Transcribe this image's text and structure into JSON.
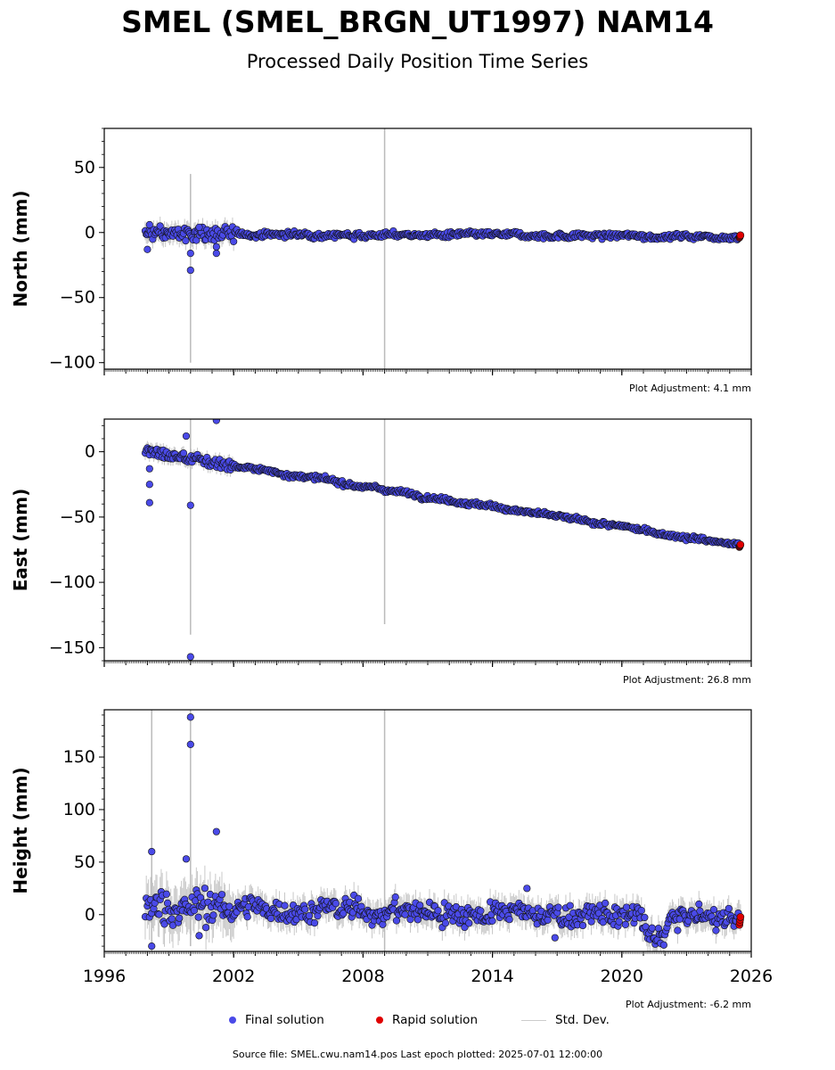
{
  "title": "SMEL (SMEL_BRGN_UT1997) NAM14",
  "subtitle": "Processed Daily Position Time Series",
  "source_text": "Source file: SMEL.cwu.nam14.pos  Last epoch plotted: 2025-07-01 12:00:00",
  "legend": {
    "final": "Final solution",
    "rapid": "Rapid solution",
    "stddev": "Std. Dev."
  },
  "colors": {
    "final": "#4a4ae8",
    "rapid": "#e00000",
    "stddev": "#bbbbbb",
    "marker_edge": "#111111"
  },
  "chart_data": {
    "type": "scatter",
    "xlim": [
      1996,
      2026
    ],
    "x_ticks": [
      1996,
      2002,
      2008,
      2014,
      2020,
      2026
    ],
    "x_tick_labels": [
      "1996",
      "2002",
      "2008",
      "2014",
      "2020",
      "2026"
    ],
    "data_start_year": 1997.9,
    "last_epoch": 2025.5,
    "rapid_start_year": 2025.45,
    "panels": [
      {
        "key": "north",
        "ylabel": "North (mm)",
        "ylim": [
          -105,
          80
        ],
        "yticks": [
          50,
          0,
          -50,
          -100
        ],
        "adjustment": "Plot Adjustment: 4.1 mm",
        "trend": {
          "start": -1,
          "end": -3
        },
        "noise": 1.5,
        "early_noise": 4,
        "outliers": [
          [
            1998.0,
            -13
          ],
          [
            1998.1,
            6
          ],
          [
            2000.0,
            -16
          ],
          [
            2000.0,
            -29
          ],
          [
            2000.4,
            4
          ],
          [
            2001.2,
            -16
          ],
          [
            2001.2,
            -11
          ]
        ],
        "spikes": [
          [
            2000.0,
            -100,
            45
          ],
          [
            2009.0,
            -105,
            80
          ]
        ],
        "rapid_end": -3
      },
      {
        "key": "east",
        "ylabel": "East (mm)",
        "ylim": [
          -160,
          25
        ],
        "yticks": [
          0,
          -50,
          -100,
          -150
        ],
        "adjustment": "Plot Adjustment: 26.8 mm",
        "trend": {
          "start": 0,
          "end": -72
        },
        "noise": 1.2,
        "early_noise": 3,
        "outliers": [
          [
            1998.1,
            -13
          ],
          [
            1998.1,
            -25
          ],
          [
            1998.1,
            -39
          ],
          [
            1999.8,
            12
          ],
          [
            2000.0,
            -41
          ],
          [
            2000.0,
            -157
          ],
          [
            2001.2,
            24
          ]
        ],
        "spikes": [
          [
            2000.0,
            -140,
            25
          ],
          [
            2009.0,
            -132,
            25
          ]
        ],
        "rapid_end": -72
      },
      {
        "key": "height",
        "ylabel": "Height (mm)",
        "ylim": [
          -35,
          195
        ],
        "yticks": [
          150,
          100,
          50,
          0
        ],
        "adjustment": "Plot Adjustment: -6.2 mm",
        "trend": {
          "start": 8,
          "end": -4
        },
        "noise": 7,
        "early_noise": 12,
        "outliers": [
          [
            1998.2,
            60
          ],
          [
            1998.2,
            -30
          ],
          [
            1999.8,
            53
          ],
          [
            2000.0,
            162
          ],
          [
            2000.0,
            188
          ],
          [
            2000.4,
            -20
          ],
          [
            2001.2,
            79
          ],
          [
            2015.6,
            25
          ],
          [
            2016.9,
            -22
          ]
        ],
        "spikes": [
          [
            1998.2,
            -35,
            195
          ],
          [
            2000.0,
            -30,
            195
          ],
          [
            2009.0,
            -35,
            195
          ]
        ],
        "dip": {
          "start": 2020.8,
          "end": 2022.3,
          "depth": -22
        },
        "rapid_end": -6
      }
    ]
  }
}
